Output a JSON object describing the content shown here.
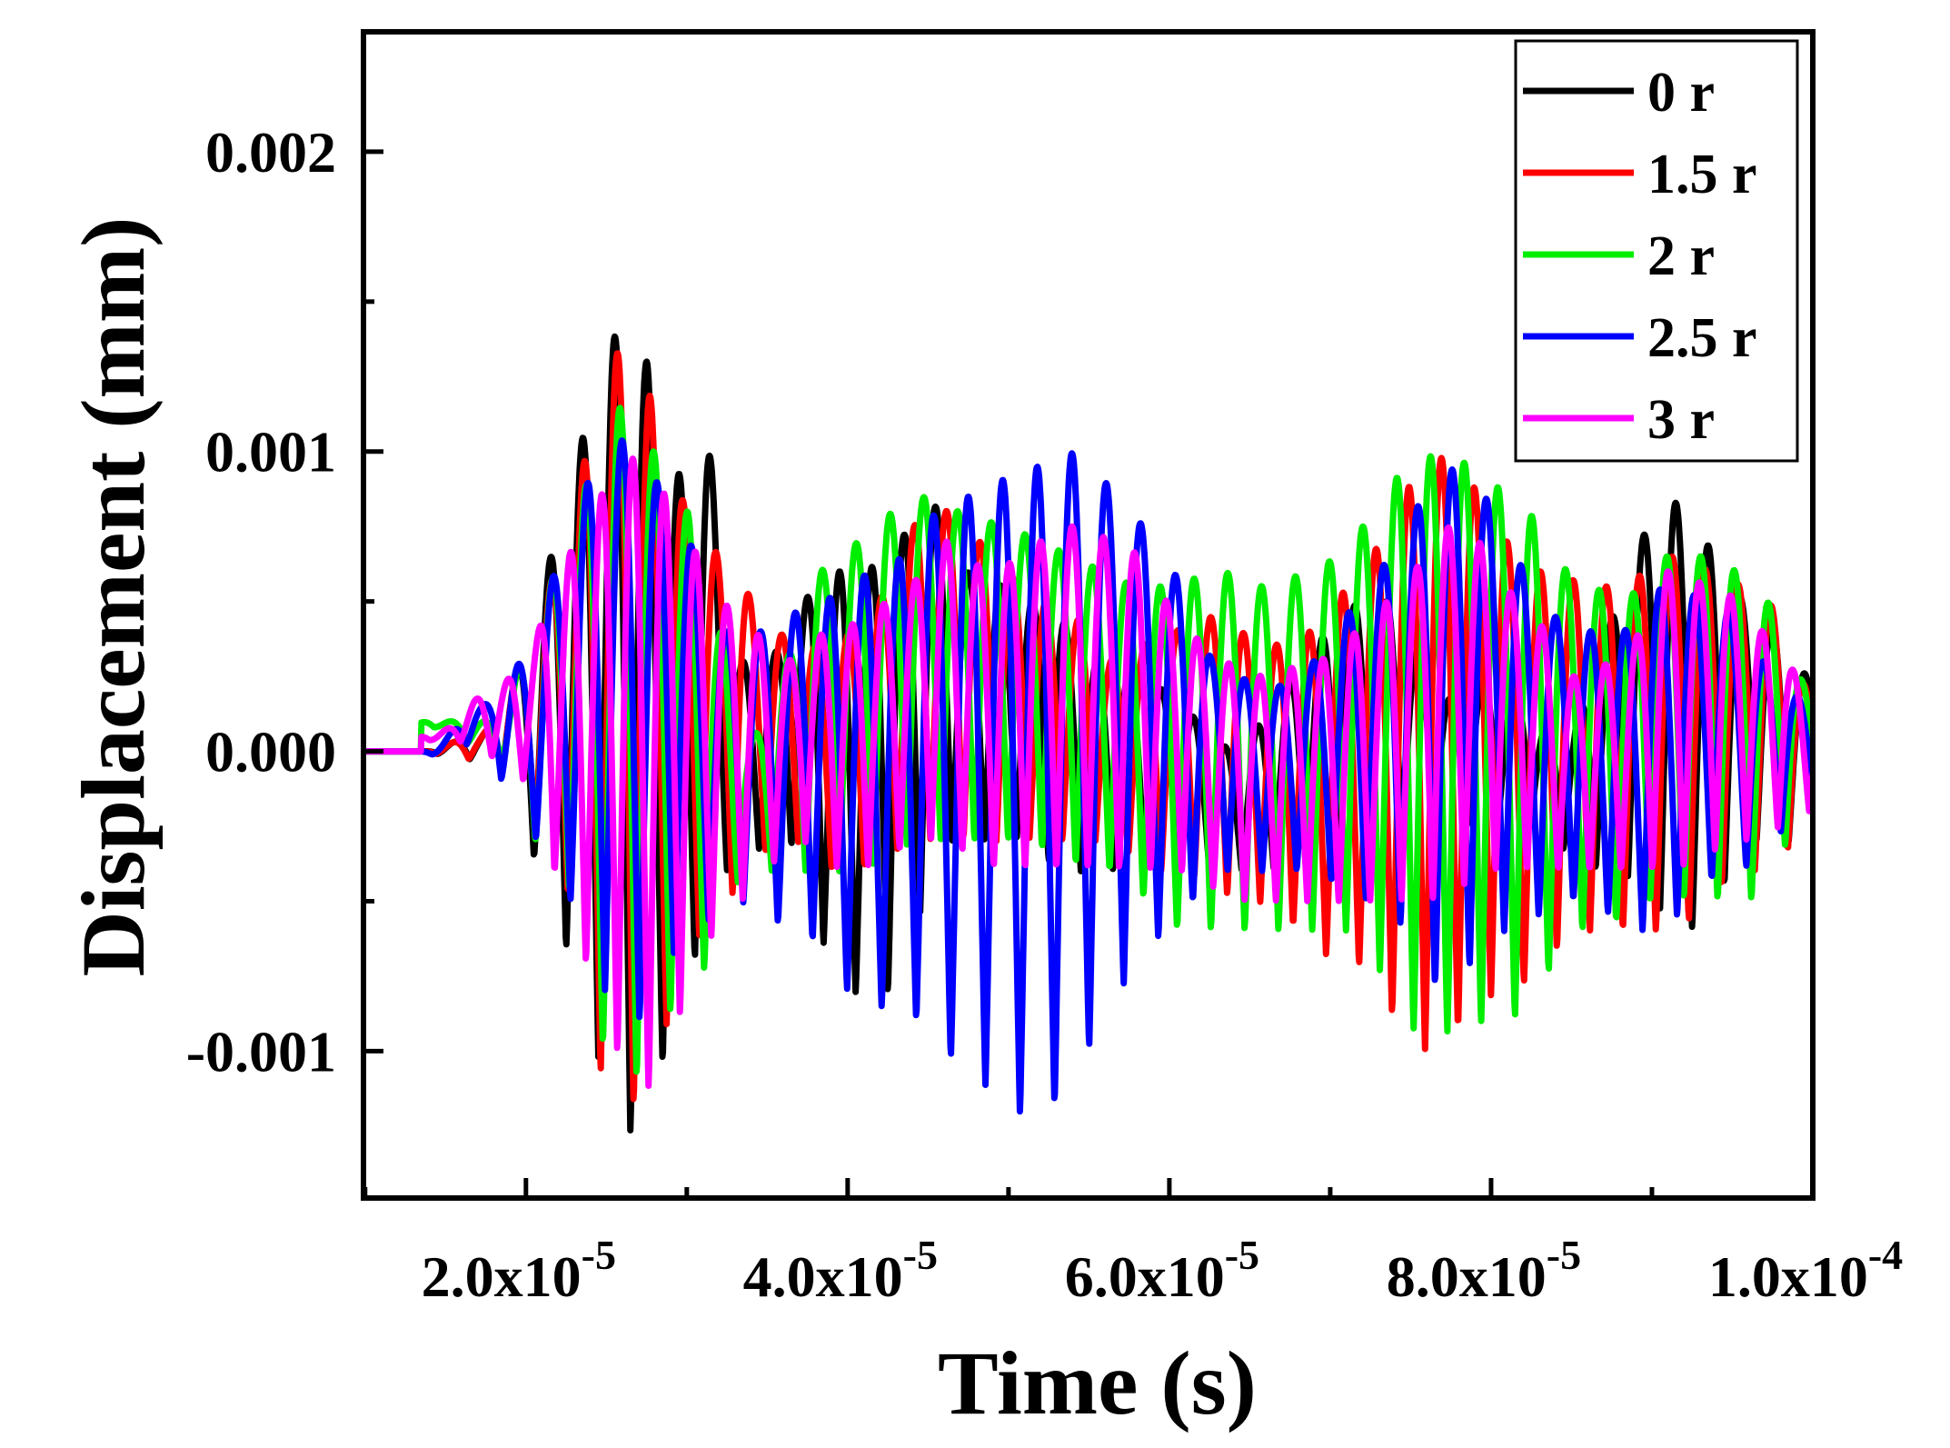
{
  "chart_data": {
    "type": "line",
    "title": "",
    "xlabel": "Time (s)",
    "ylabel": "Displacement (mm)",
    "xlim": [
      9.9e-06,
      0.0001
    ],
    "ylim": [
      -0.00149,
      0.0024
    ],
    "x_ticks": [
      2e-05,
      4e-05,
      6e-05,
      8e-05,
      0.0001
    ],
    "x_tick_labels": [
      {
        "mantissa": "2.0x10",
        "exponent": "-5"
      },
      {
        "mantissa": "4.0x10",
        "exponent": "-5"
      },
      {
        "mantissa": "6.0x10",
        "exponent": "-5"
      },
      {
        "mantissa": "8.0x10",
        "exponent": "-5"
      },
      {
        "mantissa": "1.0x10",
        "exponent": "-4"
      }
    ],
    "y_ticks": [
      -0.001,
      0.0,
      0.001,
      0.002
    ],
    "y_tick_labels": [
      "-0.001",
      "0.000",
      "0.001",
      "0.002"
    ],
    "legend_position": "top-right",
    "grid": false,
    "series": [
      {
        "name": "0 r",
        "color": "#000000",
        "envelope_x": [
          1e-05,
          1.35e-05,
          1.7e-05,
          2e-05,
          2.2e-05,
          2.4e-05,
          2.6e-05,
          2.75e-05,
          2.9e-05,
          3e-05,
          3.1e-05,
          3.3e-05,
          3.5e-05,
          3.7e-05,
          3.9e-05,
          4.1e-05,
          4.3e-05,
          4.5e-05,
          4.7e-05,
          5e-05,
          5.3e-05,
          5.5e-05,
          5.6e-05,
          5.8e-05,
          6e-05,
          6.2e-05,
          6.4e-05,
          6.6e-05,
          6.8e-05,
          7e-05,
          7.2e-05,
          7.4e-05,
          7.6e-05,
          7.8e-05,
          8e-05,
          8.2e-05,
          8.4e-05,
          8.5e-05,
          8.7e-05,
          8.9e-05,
          9.1e-05,
          9.3e-05,
          9.6e-05,
          0.0001
        ],
        "envelope_y": [
          0,
          0,
          5e-05,
          0.0003,
          0.0007,
          0.0011,
          0.00143,
          0.0013,
          0.0009,
          0.00095,
          0.00108,
          0.0003,
          0.0003,
          0.0005,
          0.0006,
          0.0006,
          0.0007,
          0.00085,
          0.0006,
          0.00055,
          0.00045,
          0.0003,
          0.0003,
          0.00025,
          0.0002,
          0.0001,
          0,
          0.0001,
          0.00025,
          0.0004,
          0.0005,
          0.0005,
          0.0003,
          0.00015,
          0.00025,
          0.0002,
          5e-05,
          0.0001,
          0.0004,
          0.0007,
          0.00085,
          0.0007,
          0.0005,
          0.00025
        ],
        "trough_x": [
          1.9e-05,
          2.1e-05,
          2.35e-05,
          2.55e-05,
          2.72e-05,
          2.9e-05,
          3.2e-05,
          3.6e-05,
          4e-05,
          4.2e-05,
          4.4e-05,
          4.6e-05,
          5e-05,
          5.4e-05,
          5.9e-05,
          6.3e-05,
          7.1e-05,
          7.6e-05,
          8.1e-05,
          8.7e-05,
          9.3e-05,
          9.6e-05,
          0.0001
        ],
        "trough_y": [
          -0.0001,
          -0.0004,
          -0.0008,
          -0.00125,
          -0.0013,
          -0.001,
          -0.0004,
          -0.0003,
          -0.0008,
          -0.00085,
          -0.0006,
          -0.0003,
          -0.0003,
          -0.0004,
          -0.0004,
          -0.0004,
          -0.0004,
          -0.0003,
          -0.0002,
          -0.0004,
          -0.0006,
          -0.0003,
          -0.0003
        ]
      },
      {
        "name": "1.5 r",
        "color": "#ff0000",
        "envelope_x": [
          1e-05,
          1.35e-05,
          1.7e-05,
          2e-05,
          2.2e-05,
          2.4e-05,
          2.6e-05,
          2.75e-05,
          2.9e-05,
          3.1e-05,
          3.3e-05,
          3.5e-05,
          3.8e-05,
          4.1e-05,
          4.3e-05,
          4.5e-05,
          4.8e-05,
          5.2e-05,
          5.4e-05,
          5.6e-05,
          5.8e-05,
          6e-05,
          6.3e-05,
          6.6e-05,
          6.9e-05,
          7.2e-05,
          7.4e-05,
          7.6e-05,
          7.8e-05,
          8e-05,
          8.2e-05,
          8.4e-05,
          8.6e-05,
          8.8e-05,
          9.1e-05,
          9.4e-05,
          9.7e-05,
          0.0001
        ],
        "envelope_y": [
          0,
          0,
          5e-05,
          0.0003,
          0.0006,
          0.001,
          0.00135,
          0.0012,
          0.0009,
          0.0007,
          0.0006,
          0.0004,
          0.00035,
          0.0004,
          0.0006,
          0.00085,
          0.0007,
          0.0005,
          0.00045,
          0.0003,
          0.00035,
          0.0004,
          0.00045,
          0.00035,
          0.0004,
          0.0006,
          0.0008,
          0.001,
          0.00095,
          0.0008,
          0.0006,
          0.0006,
          0.00055,
          0.00055,
          0.00065,
          0.0006,
          0.0005,
          0.0002
        ],
        "trough_x": [
          1.9e-05,
          2.2e-05,
          2.5e-05,
          2.7e-05,
          2.9e-05,
          3.2e-05,
          3.6e-05,
          4e-05,
          4.5e-05,
          5e-05,
          5.5e-05,
          6e-05,
          6.5e-05,
          7.1e-05,
          7.6e-05,
          8.1e-05,
          8.6e-05,
          9.1e-05,
          9.6e-05,
          0.0001
        ],
        "trough_y": [
          -0.0001,
          -0.0004,
          -0.0011,
          -0.0012,
          -0.0009,
          -0.0005,
          -0.0003,
          -0.0004,
          -0.0003,
          -0.0003,
          -0.0003,
          -0.0004,
          -0.0005,
          -0.0007,
          -0.001,
          -0.0008,
          -0.0006,
          -0.0006,
          -0.0004,
          -0.0003
        ]
      },
      {
        "name": "2 r",
        "color": "#00ee00",
        "envelope_x": [
          1e-05,
          1.4e-05,
          1.8e-05,
          2e-05,
          2.2e-05,
          2.4e-05,
          2.6e-05,
          2.8e-05,
          3e-05,
          3.2e-05,
          3.4e-05,
          3.6e-05,
          3.8e-05,
          4.1e-05,
          4.3e-05,
          4.5e-05,
          4.7e-05,
          5e-05,
          5.2e-05,
          5.4e-05,
          5.6e-05,
          5.8e-05,
          6e-05,
          6.3e-05,
          6.6e-05,
          6.9e-05,
          7.2e-05,
          7.5e-05,
          7.7e-05,
          7.9e-05,
          8.2e-05,
          8.5e-05,
          8.8e-05,
          9.1e-05,
          9.4e-05,
          9.7e-05,
          0.0001
        ],
        "envelope_y": [
          0,
          0.0001,
          0.0001,
          0.0003,
          0.0006,
          0.0009,
          0.00115,
          0.001,
          0.0008,
          0.0004,
          5e-05,
          0.0003,
          0.0006,
          0.0007,
          0.0008,
          0.00085,
          0.0008,
          0.00075,
          0.0007,
          0.00065,
          0.0006,
          0.00055,
          0.00055,
          0.0006,
          0.00055,
          0.0006,
          0.00075,
          0.00095,
          0.001,
          0.00095,
          0.0008,
          0.0006,
          0.0005,
          0.00065,
          0.00065,
          0.0005,
          0.0002
        ],
        "trough_x": [
          1.8e-05,
          2.2e-05,
          2.5e-05,
          2.7e-05,
          3e-05,
          3.4e-05,
          4e-05,
          4.5e-05,
          5e-05,
          5.6e-05,
          6.1e-05,
          6.6e-05,
          7.1e-05,
          7.6e-05,
          8.1e-05,
          8.6e-05,
          9.1e-05,
          9.6e-05,
          0.0001
        ],
        "trough_y": [
          -5e-05,
          -0.0004,
          -0.001,
          -0.0011,
          -0.0008,
          -0.0004,
          -0.0004,
          -0.0003,
          -0.0003,
          -0.0004,
          -0.0006,
          -0.0006,
          -0.0006,
          -0.00095,
          -0.0009,
          -0.0006,
          -0.0005,
          -0.0005,
          -0.0002
        ]
      },
      {
        "name": "2.5 r",
        "color": "#0000ff",
        "envelope_x": [
          1e-05,
          1.4e-05,
          1.7e-05,
          2e-05,
          2.2e-05,
          2.4e-05,
          2.55e-05,
          2.8e-05,
          3e-05,
          3.2e-05,
          3.5e-05,
          3.8e-05,
          4.2e-05,
          4.6e-05,
          4.9e-05,
          5.2e-05,
          5.45e-05,
          5.7e-05,
          6e-05,
          6.3e-05,
          6.6e-05,
          6.9e-05,
          7.2e-05,
          7.5e-05,
          7.7e-05,
          7.9e-05,
          8.1e-05,
          8.3e-05,
          8.5e-05,
          8.8e-05,
          9.1e-05,
          9.4e-05,
          9.7e-05,
          0.0001
        ],
        "envelope_y": [
          0,
          0,
          0.00015,
          0.0003,
          0.0006,
          0.0009,
          0.00105,
          0.0009,
          0.0007,
          0.0004,
          0.0004,
          0.0005,
          0.0006,
          0.0008,
          0.0009,
          0.00095,
          0.001,
          0.00085,
          0.0006,
          0.0003,
          0.0002,
          0.0003,
          0.0005,
          0.0008,
          0.00095,
          0.0009,
          0.0007,
          0.0005,
          0.0004,
          0.0004,
          0.00055,
          0.0005,
          0.0003,
          0.00015
        ],
        "trough_x": [
          1.7e-05,
          2.1e-05,
          2.5e-05,
          2.7e-05,
          2.9e-05,
          3.3e-05,
          3.7e-05,
          4e-05,
          4.4e-05,
          4.8e-05,
          5e-05,
          5.2e-05,
          5.4e-05,
          5.6e-05,
          5.8e-05,
          6e-05,
          6.3e-05,
          6.8e-05,
          7.3e-05,
          7.7e-05,
          8.1e-05,
          8.5e-05,
          9e-05,
          9.5e-05,
          0.0001
        ],
        "trough_y": [
          -0.0001,
          -0.0003,
          -0.0008,
          -0.0009,
          -0.0007,
          -0.0005,
          -0.0006,
          -0.0008,
          -0.0009,
          -0.0011,
          -0.0012,
          -0.00125,
          -0.0011,
          -0.0009,
          -0.0007,
          -0.0006,
          -0.0004,
          -0.0004,
          -0.0005,
          -0.0008,
          -0.0006,
          -0.0005,
          -0.0006,
          -0.0004,
          -0.0002
        ]
      },
      {
        "name": "3 r",
        "color": "#ff00ff",
        "envelope_x": [
          1e-05,
          1.4e-05,
          1.8e-05,
          2e-05,
          2.2e-05,
          2.4e-05,
          2.6e-05,
          2.8e-05,
          3e-05,
          3.2e-05,
          3.4e-05,
          3.6e-05,
          3.9e-05,
          4.3e-05,
          4.6e-05,
          4.9e-05,
          5.2e-05,
          5.4e-05,
          5.7e-05,
          6e-05,
          6.3e-05,
          6.6e-05,
          6.9e-05,
          7.2e-05,
          7.5e-05,
          7.7e-05,
          7.9e-05,
          8.2e-05,
          8.5e-05,
          8.8e-05,
          9.1e-05,
          9.4e-05,
          9.7e-05,
          0.0001
        ],
        "envelope_y": [
          0,
          5e-05,
          0.0002,
          0.0003,
          0.0006,
          0.0008,
          0.001,
          0.0009,
          0.0007,
          0.0005,
          0.0004,
          0.0003,
          0.0004,
          0.0005,
          0.0007,
          0.0006,
          0.0007,
          0.00075,
          0.0007,
          0.0005,
          0.0003,
          0.00025,
          0.0003,
          0.0004,
          0.0006,
          0.00075,
          0.0007,
          0.0005,
          0.00025,
          0.0003,
          0.0006,
          0.00055,
          0.0004,
          0.0002
        ],
        "trough_x": [
          1.7e-05,
          2e-05,
          2.35e-05,
          2.5e-05,
          2.7e-05,
          2.9e-05,
          3.3e-05,
          3.7e-05,
          4e-05,
          4.5e-05,
          5e-05,
          5.5e-05,
          6e-05,
          6.5e-05,
          7.1e-05,
          7.6e-05,
          8.1e-05,
          8.6e-05,
          9.1e-05,
          9.6e-05,
          0.0001
        ],
        "trough_y": [
          -0.0001,
          -0.0001,
          -0.0007,
          -0.00095,
          -0.0012,
          -0.0009,
          -0.0005,
          -0.0003,
          -0.0004,
          -0.0003,
          -0.0004,
          -0.0004,
          -0.0004,
          -0.0005,
          -0.0005,
          -0.0005,
          -0.0004,
          -0.0004,
          -0.0004,
          -0.0003,
          -0.0002
        ]
      }
    ]
  }
}
